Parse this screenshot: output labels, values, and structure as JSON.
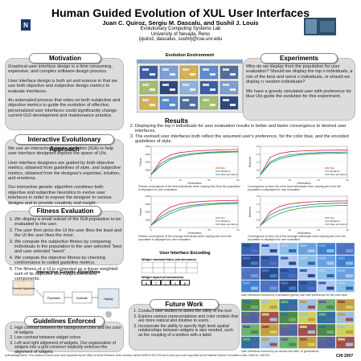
{
  "header": {
    "title": "Human Guided Evolution of XUL User Interfaces",
    "authors": "Juan C. Quiroz, Sergiu M. Dascalu, and Sushil J. Louis",
    "lab": "Evolutionary Computing Systems Lab",
    "university": "University of Nevada, Reno",
    "emails": "{quiroz, dascalus, sushil}@cse.unr.edu",
    "left_logo_text": "University of Nevada, Reno",
    "right_logo_text": "ECSL"
  },
  "motivation": {
    "heading": "Motivation",
    "p1": "Graphical user interface design is a time consuming, expensive, and complex software design process.",
    "p2": "User interface design is both art and science in that we use both objective and subjective design metrics to evaluate interfaces.",
    "p3": "An automated process that relies on both subjective and objective metrics to guide the evolution of effective, personalized user interfaces could significantly change current GUI development and maintenance practice."
  },
  "iea": {
    "heading": "Interactive Evolutionary Approach",
    "p1": "We use an interactive genetic algorithm (IGA) to help user interface designers explore the space of UIs.",
    "p2": "User interface designers are guided by both objective metrics, obtained from guidelines of style, and subjective metrics, obtained from the designer's expertise, intuition, and emotions.",
    "p3": "Our interactive genetic algorithm combines both objective and subjective heuristics to evolve user interfaces in order to expose the designer to various designs and to provide creativity and insight."
  },
  "fitness": {
    "heading": "Fitness Evaluation",
    "items": [
      "We display a small subset of the IGA population to be evaluated to the user.",
      "The user then picks the UI the user likes the least and the UI the user likes the most.",
      "We compute the subjective fitness by comparing individuals in the population to the user selected \"best and user selected \"worst\".",
      "We compute the objective fitness by checking conformance to coded guideline metrics.",
      "The fitness of a UI is computed as a linear weighted sum of its objective and subjective fitness components."
    ]
  },
  "iga_fig": {
    "title": "Interactive Genetic Algorithms",
    "boxes": [
      "Genetic Algorithm",
      "Population",
      "Evaluate",
      "Display"
    ]
  },
  "guidelines": {
    "heading": "Guidelines Enforced",
    "items": [
      "High contrast between the background color and the color of widgets",
      "Low contrast between widget colors",
      "Left and right alignment of widgets. Our organization of widgets into a grid construct implicitly enforces the alignment of widgets."
    ]
  },
  "evo_env": {
    "title": "Evolution Environment"
  },
  "experiments": {
    "heading": "Experiments",
    "p1": "Who do we display from the population for user evaluation? Should we display the top n individuals, a mix of the best and worst n individuals, or should we display n random individuals?",
    "p2": "We have a greedy simulated user with preference for blue UIs guide the evolution for this experiment."
  },
  "results": {
    "heading": "Results",
    "items": [
      "Displaying the top n individuals for user evaluation results in better and faster convergence to desired user interfaces.",
      "The evolved user interfaces both reflect the assumed user's preference, for the color blue, and the encoded guidelines of style."
    ],
    "caption1": "Fitness convergence of the best individuals when varying who from the population is displayed for user evaluation.",
    "caption2": "Convergence to blue UIs of the best individuals when varying who from the population is displayed for user evaluation.",
    "caption3": "Fitness convergence of the average individuals when varying who from the population is displayed for user evaluation.",
    "caption4": "Convergence to blue UIs of the average individuals when varying who from the population is displayed for user evaluation.",
    "xlabel": "Generations",
    "ylabel_fitness": "Fitness",
    "ylabel_blue": "Blueness",
    "legend": [
      "Top",
      "Random",
      "Best and Worst"
    ]
  },
  "encoding": {
    "title": "User Interface Encoding",
    "widget_label": "Widget characteristics (chromosome)",
    "layout_label": "Widget layout (chromosome)",
    "cells": [
      "B",
      "T",
      "L",
      "X",
      "B"
    ]
  },
  "shots": {
    "caption_top": "User interfaces evolved by a simulated greedy user with preference for the color blue.",
    "caption_bottom": "User interfaces evolved by an actual user after 10 generations."
  },
  "future": {
    "heading": "Future Work",
    "items": [
      "Conduct user studies to asses the utility of the tool.",
      "Explore various representations and color models that are more natural and intuitive to users.",
      "Incorporate the ability to specify high level spatial relationships between widgets is also needed, such as the coupling of a textbox with a label."
    ]
  },
  "footer": {
    "ack": "Acknowledgements: This material is based upon work supported by the Office of Naval Research under contract number N00014-05-0709 and in part upon work supported by the National Science Foundation under Grant No. 0447416.",
    "conf": "CHI 2007"
  },
  "chart_data": [
    {
      "type": "line",
      "title": "",
      "xlabel": "Generations",
      "ylabel": "Fitness",
      "xlim": [
        0,
        30
      ],
      "ylim": [
        0,
        4000
      ],
      "series": [
        {
          "name": "Top",
          "values": [
            400,
            2200,
            2900,
            3200,
            3350,
            3450,
            3500,
            3550,
            3580,
            3600
          ]
        },
        {
          "name": "Random",
          "values": [
            400,
            1500,
            2300,
            2700,
            2900,
            3050,
            3150,
            3200,
            3250,
            3280
          ]
        },
        {
          "name": "Best and Worst",
          "values": [
            400,
            1800,
            2500,
            2850,
            3050,
            3150,
            3250,
            3300,
            3330,
            3350
          ]
        }
      ]
    },
    {
      "type": "line",
      "title": "",
      "xlabel": "Generations",
      "ylabel": "Blueness",
      "xlim": [
        0,
        30
      ],
      "ylim": [
        0,
        2
      ],
      "series": [
        {
          "name": "Top",
          "values": [
            0.2,
            1.3,
            1.55,
            1.65,
            1.7,
            1.72,
            1.74,
            1.75,
            1.76,
            1.76
          ]
        },
        {
          "name": "Random",
          "values": [
            0.2,
            0.9,
            1.2,
            1.35,
            1.45,
            1.5,
            1.53,
            1.55,
            1.56,
            1.57
          ]
        },
        {
          "name": "Best and Worst",
          "values": [
            0.2,
            1.0,
            1.3,
            1.45,
            1.52,
            1.57,
            1.6,
            1.62,
            1.63,
            1.64
          ]
        }
      ]
    },
    {
      "type": "line",
      "title": "",
      "xlabel": "Generations",
      "ylabel": "Fitness",
      "xlim": [
        0,
        30
      ],
      "ylim": [
        0,
        4000
      ],
      "series": [
        {
          "name": "Top",
          "values": [
            300,
            1800,
            2600,
            3000,
            3200,
            3300,
            3380,
            3420,
            3450,
            3470
          ]
        },
        {
          "name": "Random",
          "values": [
            300,
            1100,
            1800,
            2300,
            2600,
            2800,
            2900,
            2980,
            3030,
            3060
          ]
        },
        {
          "name": "Best and Worst",
          "values": [
            300,
            1400,
            2100,
            2550,
            2800,
            2950,
            3050,
            3120,
            3170,
            3200
          ]
        }
      ]
    },
    {
      "type": "line",
      "title": "",
      "xlabel": "Generations",
      "ylabel": "Blueness",
      "xlim": [
        0,
        30
      ],
      "ylim": [
        0,
        2
      ],
      "series": [
        {
          "name": "Top",
          "values": [
            0.15,
            1.0,
            1.35,
            1.5,
            1.58,
            1.63,
            1.66,
            1.68,
            1.69,
            1.7
          ]
        },
        {
          "name": "Random",
          "values": [
            0.15,
            0.6,
            0.9,
            1.1,
            1.22,
            1.3,
            1.35,
            1.38,
            1.4,
            1.41
          ]
        },
        {
          "name": "Best and Worst",
          "values": [
            0.15,
            0.8,
            1.1,
            1.28,
            1.38,
            1.45,
            1.5,
            1.53,
            1.55,
            1.56
          ]
        }
      ]
    }
  ],
  "colors": {
    "series": [
      "#d62728",
      "#2ca02c",
      "#1f77b4"
    ],
    "panel": "#dcdcdc"
  }
}
